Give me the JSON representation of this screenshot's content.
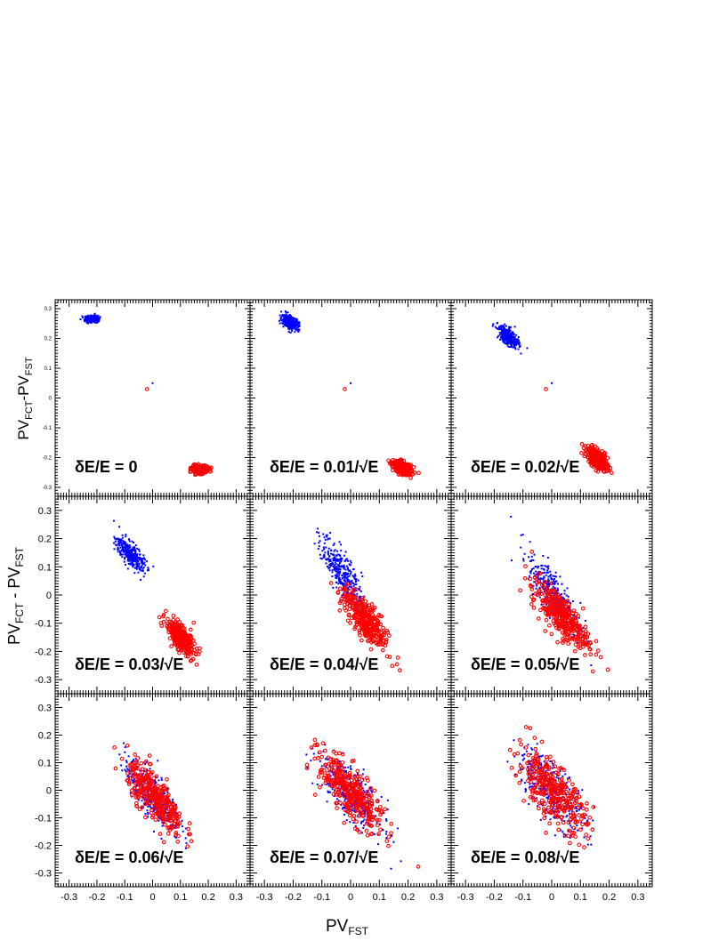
{
  "chart_data": {
    "type": "scatter",
    "title": "",
    "xlabel": {
      "main": "PV",
      "sub": "FST"
    },
    "ylabel": {
      "main": "PV",
      "sub": "FCT",
      "mid": "-PV",
      "sub2": "FST"
    },
    "ylabel_wide": {
      "main": "PV",
      "sub": "FCT",
      "mid": " - PV",
      "sub2": "FST"
    },
    "grid": false,
    "legend": "none",
    "colors": {
      "series_a": "#0000ff",
      "series_b": "#ff0000"
    },
    "xlim": [
      -0.35,
      0.35
    ],
    "x_ticks": [
      "-0.3",
      "-0.2",
      "-0.1",
      "0",
      "0.1",
      "0.2",
      "0.3"
    ],
    "y_ticks": [
      "-0.3",
      "-0.2",
      "-0.1",
      "0",
      "0.1",
      "0.2",
      "0.3"
    ],
    "panels": [
      {
        "label": "δE/E = 0",
        "ylim": [
          -0.33,
          0.33
        ],
        "clusters": [
          {
            "series": "a",
            "cx": -0.22,
            "cy": 0.265,
            "sx": 0.012,
            "sy": 0.006,
            "rho": 0.0,
            "n": 320
          },
          {
            "series": "b",
            "cx": 0.17,
            "cy": -0.24,
            "sx": 0.014,
            "sy": 0.006,
            "rho": 0.0,
            "n": 320
          },
          {
            "series": "a",
            "cx": 0.0,
            "cy": 0.05,
            "sx": 0.0,
            "sy": 0.0,
            "rho": 0.0,
            "n": 1
          },
          {
            "series": "b",
            "cx": -0.02,
            "cy": 0.03,
            "sx": 0.0,
            "sy": 0.0,
            "rho": 0.0,
            "n": 1
          }
        ]
      },
      {
        "label": "δE/E = 0.01/√E",
        "ylim": [
          -0.33,
          0.33
        ],
        "clusters": [
          {
            "series": "a",
            "cx": -0.21,
            "cy": 0.255,
            "sx": 0.015,
            "sy": 0.012,
            "rho": -0.5,
            "n": 320
          },
          {
            "series": "b",
            "cx": 0.18,
            "cy": -0.235,
            "sx": 0.016,
            "sy": 0.011,
            "rho": -0.5,
            "n": 320
          },
          {
            "series": "a",
            "cx": 0.0,
            "cy": 0.05,
            "sx": 0.0,
            "sy": 0.0,
            "rho": 0.0,
            "n": 1
          },
          {
            "series": "b",
            "cx": -0.02,
            "cy": 0.03,
            "sx": 0.0,
            "sy": 0.0,
            "rho": 0.0,
            "n": 1
          }
        ]
      },
      {
        "label": "δE/E = 0.02/√E",
        "ylim": [
          -0.33,
          0.33
        ],
        "clusters": [
          {
            "series": "a",
            "cx": -0.15,
            "cy": 0.205,
            "sx": 0.018,
            "sy": 0.018,
            "rho": -0.6,
            "n": 330
          },
          {
            "series": "b",
            "cx": 0.16,
            "cy": -0.205,
            "sx": 0.018,
            "sy": 0.018,
            "rho": -0.6,
            "n": 330
          },
          {
            "series": "a",
            "cx": 0.0,
            "cy": 0.05,
            "sx": 0.0,
            "sy": 0.0,
            "rho": 0.0,
            "n": 1
          },
          {
            "series": "b",
            "cx": -0.02,
            "cy": 0.03,
            "sx": 0.0,
            "sy": 0.0,
            "rho": 0.0,
            "n": 1
          }
        ]
      },
      {
        "label": "δE/E = 0.03/√E",
        "ylim": [
          -0.35,
          0.35
        ],
        "clusters": [
          {
            "series": "a",
            "cx": -0.08,
            "cy": 0.145,
            "sx": 0.025,
            "sy": 0.03,
            "rho": -0.7,
            "n": 330
          },
          {
            "series": "b",
            "cx": 0.1,
            "cy": -0.15,
            "sx": 0.025,
            "sy": 0.03,
            "rho": -0.7,
            "n": 330
          }
        ]
      },
      {
        "label": "δE/E = 0.04/√E",
        "ylim": [
          -0.35,
          0.35
        ],
        "clusters": [
          {
            "series": "a",
            "cx": -0.03,
            "cy": 0.08,
            "sx": 0.035,
            "sy": 0.06,
            "rho": -0.78,
            "n": 340
          },
          {
            "series": "b",
            "cx": 0.05,
            "cy": -0.09,
            "sx": 0.04,
            "sy": 0.055,
            "rho": -0.78,
            "n": 340
          }
        ]
      },
      {
        "label": "δE/E = 0.05/√E",
        "ylim": [
          -0.35,
          0.35
        ],
        "clusters": [
          {
            "series": "a",
            "cx": 0.01,
            "cy": 0.0,
            "sx": 0.045,
            "sy": 0.07,
            "rho": -0.8,
            "n": 340
          },
          {
            "series": "b",
            "cx": 0.03,
            "cy": -0.07,
            "sx": 0.05,
            "sy": 0.06,
            "rho": -0.8,
            "n": 340
          }
        ]
      },
      {
        "label": "δE/E = 0.06/√E",
        "ylim": [
          -0.35,
          0.35
        ],
        "clusters": [
          {
            "series": "a",
            "cx": 0.0,
            "cy": -0.02,
            "sx": 0.05,
            "sy": 0.065,
            "rho": -0.78,
            "n": 340
          },
          {
            "series": "b",
            "cx": 0.01,
            "cy": -0.03,
            "sx": 0.05,
            "sy": 0.065,
            "rho": -0.78,
            "n": 340
          }
        ]
      },
      {
        "label": "δE/E = 0.07/√E",
        "ylim": [
          -0.35,
          0.35
        ],
        "clusters": [
          {
            "series": "a",
            "cx": 0.0,
            "cy": -0.01,
            "sx": 0.055,
            "sy": 0.07,
            "rho": -0.75,
            "n": 340
          },
          {
            "series": "b",
            "cx": 0.0,
            "cy": -0.01,
            "sx": 0.055,
            "sy": 0.07,
            "rho": -0.75,
            "n": 340
          }
        ]
      },
      {
        "label": "δE/E = 0.08/√E",
        "ylim": [
          -0.35,
          0.35
        ],
        "clusters": [
          {
            "series": "a",
            "cx": 0.0,
            "cy": 0.0,
            "sx": 0.06,
            "sy": 0.075,
            "rho": -0.72,
            "n": 340
          },
          {
            "series": "b",
            "cx": 0.0,
            "cy": 0.0,
            "sx": 0.06,
            "sy": 0.075,
            "rho": -0.72,
            "n": 340
          }
        ]
      }
    ]
  }
}
